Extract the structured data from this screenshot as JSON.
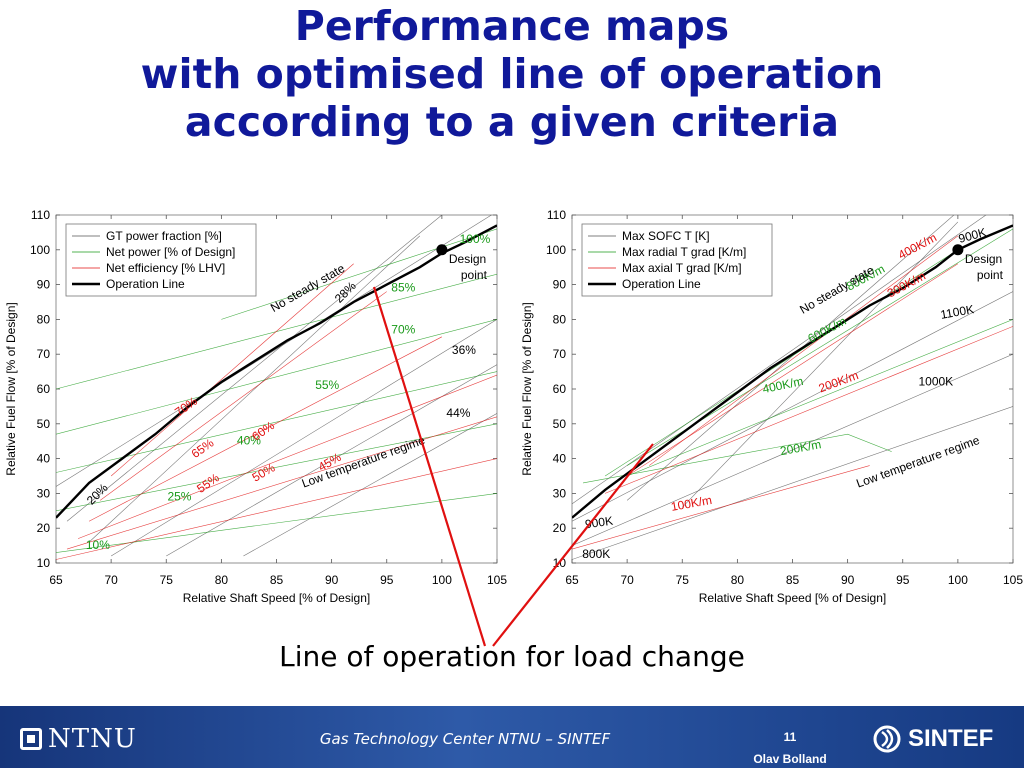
{
  "title": {
    "line1": "Performance maps",
    "line2": "with optimised line of operation",
    "line3": "according to a given criteria"
  },
  "caption": "Line of operation for load change",
  "footer": {
    "logo_left": "NTNU",
    "center_text": "Gas Technology Center NTNU – SINTEF",
    "page_number": "11",
    "author": "Olav Bolland",
    "logo_right": "SINTEF"
  },
  "colors": {
    "title": "#10199a",
    "series_black": "#000000",
    "series_green": "#1a9a1a",
    "series_red": "#e01010",
    "callout_line": "#e01010",
    "footer_bg": "#1f4690"
  },
  "chart_data": [
    {
      "type": "line",
      "xlabel": "Relative Shaft Speed [% of Design]",
      "ylabel": "Relative Fuel Flow [% of Design]",
      "xlim": [
        65,
        105
      ],
      "ylim": [
        10,
        110
      ],
      "xticks": [
        "65",
        "70",
        "75",
        "80",
        "85",
        "90",
        "95",
        "100",
        "105"
      ],
      "yticks": [
        "10",
        "20",
        "30",
        "40",
        "50",
        "60",
        "70",
        "80",
        "90",
        "100",
        "110"
      ],
      "legend_position": "top-left",
      "legend": [
        {
          "label": "GT power fraction [%]",
          "color": "#555555",
          "style": "thin"
        },
        {
          "label": "Net power [% of Design]",
          "color": "#1a9a1a",
          "style": "thin"
        },
        {
          "label": "Net efficiency [% LHV]",
          "color": "#e01010",
          "style": "thin"
        },
        {
          "label": "Operation Line",
          "color": "#000000",
          "style": "thick"
        }
      ],
      "operation_line": {
        "x": [
          65,
          68,
          71,
          74,
          77,
          80,
          83,
          86,
          89,
          92,
          95,
          98,
          100,
          102,
          105
        ],
        "y": [
          23,
          33,
          40,
          47,
          55,
          62,
          68,
          74,
          79,
          85,
          90,
          95,
          99,
          102,
          107
        ]
      },
      "design_point": {
        "x": 100,
        "y": 100,
        "label_line1": "Design",
        "label_line2": "point"
      },
      "region_labels": [
        "No steady state",
        "Low temperature regime"
      ],
      "contours": [
        {
          "group": "gt_power",
          "color": "#555555",
          "x": [
            65,
            105
          ],
          "y": [
            32,
            111
          ]
        },
        {
          "group": "gt_power",
          "color": "#555555",
          "x": [
            66,
            100
          ],
          "y": [
            22,
            110
          ]
        },
        {
          "group": "gt_power",
          "color": "#555555",
          "x": [
            68,
            98
          ],
          "y": [
            16,
            104
          ]
        },
        {
          "group": "gt_power",
          "color": "#555555",
          "x": [
            70,
            105
          ],
          "y": [
            12,
            80
          ]
        },
        {
          "group": "gt_power",
          "color": "#555555",
          "x": [
            75,
            105
          ],
          "y": [
            12,
            67
          ]
        },
        {
          "group": "gt_power",
          "color": "#555555",
          "x": [
            82,
            105
          ],
          "y": [
            12,
            53
          ]
        },
        {
          "group": "net_power",
          "color": "#1a9a1a",
          "x": [
            65,
            105
          ],
          "y": [
            13,
            30
          ]
        },
        {
          "group": "net_power",
          "color": "#1a9a1a",
          "x": [
            65,
            105
          ],
          "y": [
            25,
            50
          ]
        },
        {
          "group": "net_power",
          "color": "#1a9a1a",
          "x": [
            65,
            105
          ],
          "y": [
            36,
            65
          ]
        },
        {
          "group": "net_power",
          "color": "#1a9a1a",
          "x": [
            65,
            105
          ],
          "y": [
            47,
            80
          ]
        },
        {
          "group": "net_power",
          "color": "#1a9a1a",
          "x": [
            65,
            105
          ],
          "y": [
            60,
            93
          ]
        },
        {
          "group": "net_power",
          "color": "#1a9a1a",
          "x": [
            80,
            105
          ],
          "y": [
            80,
            106
          ]
        },
        {
          "group": "efficiency",
          "color": "#e01010",
          "x": [
            65,
            105
          ],
          "y": [
            11,
            40
          ]
        },
        {
          "group": "efficiency",
          "color": "#e01010",
          "x": [
            66,
            105
          ],
          "y": [
            14,
            52
          ]
        },
        {
          "group": "efficiency",
          "color": "#e01010",
          "x": [
            67,
            105
          ],
          "y": [
            17,
            64
          ]
        },
        {
          "group": "efficiency",
          "color": "#e01010",
          "x": [
            68,
            100
          ],
          "y": [
            22,
            75
          ]
        },
        {
          "group": "efficiency",
          "color": "#e01010",
          "x": [
            69,
            95
          ],
          "y": [
            28,
            88
          ]
        },
        {
          "group": "efficiency",
          "color": "#e01010",
          "x": [
            70,
            92
          ],
          "y": [
            35,
            96
          ]
        }
      ],
      "annotations": [
        {
          "text": "100%",
          "x": 103,
          "y": 102,
          "color": "#1a9a1a",
          "rotate": 0
        },
        {
          "text": "85%",
          "x": 96.5,
          "y": 88,
          "color": "#1a9a1a",
          "rotate": 0
        },
        {
          "text": "70%",
          "x": 96.5,
          "y": 76,
          "color": "#1a9a1a",
          "rotate": 0
        },
        {
          "text": "55%",
          "x": 89.6,
          "y": 60,
          "color": "#1a9a1a",
          "rotate": 0
        },
        {
          "text": "40%",
          "x": 82.5,
          "y": 44,
          "color": "#1a9a1a",
          "rotate": 0
        },
        {
          "text": "25%",
          "x": 76.2,
          "y": 28,
          "color": "#1a9a1a",
          "rotate": 0
        },
        {
          "text": "10%",
          "x": 68.8,
          "y": 14,
          "color": "#1a9a1a",
          "rotate": 0
        },
        {
          "text": "36%",
          "x": 102,
          "y": 70,
          "color": "#000000",
          "rotate": 0
        },
        {
          "text": "44%",
          "x": 101.5,
          "y": 52,
          "color": "#000000",
          "rotate": 0
        },
        {
          "text": "28%",
          "x": 91.5,
          "y": 87,
          "color": "#000000",
          "rotate": -45
        },
        {
          "text": "20%",
          "x": 69,
          "y": 29,
          "color": "#000000",
          "rotate": -45
        },
        {
          "text": "70%",
          "x": 77,
          "y": 54,
          "color": "#e01010",
          "rotate": -35
        },
        {
          "text": "65%",
          "x": 78.5,
          "y": 42,
          "color": "#e01010",
          "rotate": -35
        },
        {
          "text": "60%",
          "x": 84,
          "y": 47,
          "color": "#e01010",
          "rotate": -35
        },
        {
          "text": "55%",
          "x": 79,
          "y": 32,
          "color": "#e01010",
          "rotate": -35
        },
        {
          "text": "50%",
          "x": 84,
          "y": 35,
          "color": "#e01010",
          "rotate": -30
        },
        {
          "text": "45%",
          "x": 90,
          "y": 38,
          "color": "#e01010",
          "rotate": -30
        },
        {
          "text": "No steady state",
          "x": 88,
          "y": 88,
          "color": "#000000",
          "rotate": -30
        },
        {
          "text": "Low temperature regime",
          "x": 93,
          "y": 38,
          "color": "#000000",
          "rotate": -20
        }
      ]
    },
    {
      "type": "line",
      "xlabel": "Relative Shaft Speed [% of Design]",
      "ylabel": "Relative Fuel Flow [% of Design]",
      "xlim": [
        65,
        105
      ],
      "ylim": [
        10,
        110
      ],
      "xticks": [
        "65",
        "70",
        "75",
        "80",
        "85",
        "90",
        "95",
        "100",
        "105"
      ],
      "yticks": [
        "10",
        "20",
        "30",
        "40",
        "50",
        "60",
        "70",
        "80",
        "90",
        "100",
        "110"
      ],
      "legend_position": "top-left",
      "legend": [
        {
          "label": "Max SOFC T [K]",
          "color": "#555555",
          "style": "thin"
        },
        {
          "label": "Max radial T grad [K/m]",
          "color": "#1a9a1a",
          "style": "thin"
        },
        {
          "label": "Max axial T grad [K/m]",
          "color": "#e01010",
          "style": "thin"
        },
        {
          "label": "Operation Line",
          "color": "#000000",
          "style": "thick"
        }
      ],
      "operation_line": {
        "x": [
          65,
          68,
          71,
          74,
          77,
          80,
          83,
          86,
          89,
          92,
          95,
          98,
          100,
          102,
          105
        ],
        "y": [
          23,
          31,
          38,
          45,
          52,
          59,
          66,
          72,
          78,
          84,
          89,
          95,
          100,
          103,
          107
        ]
      },
      "design_point": {
        "x": 100,
        "y": 100,
        "label_line1": "Design",
        "label_line2": "point"
      },
      "region_labels": [
        "No steady state",
        "Low temperature regime"
      ],
      "contours": [
        {
          "group": "sofc_t",
          "color": "#555555",
          "x": [
            65,
            105
          ],
          "y": [
            11,
            55
          ]
        },
        {
          "group": "sofc_t",
          "color": "#555555",
          "x": [
            65,
            105
          ],
          "y": [
            15,
            70
          ]
        },
        {
          "group": "sofc_t",
          "color": "#555555",
          "x": [
            65,
            105
          ],
          "y": [
            22,
            88
          ]
        },
        {
          "group": "sofc_t",
          "color": "#555555",
          "x": [
            65,
            103
          ],
          "y": [
            27,
            111
          ]
        },
        {
          "group": "sofc_t",
          "color": "#555555",
          "x": [
            70,
            100
          ],
          "y": [
            28,
            111
          ]
        },
        {
          "group": "sofc_t",
          "color": "#555555",
          "x": [
            75,
            100
          ],
          "y": [
            26,
            108
          ]
        },
        {
          "group": "radial",
          "color": "#1a9a1a",
          "x": [
            70,
            105
          ],
          "y": [
            35,
            80
          ]
        },
        {
          "group": "radial",
          "color": "#1a9a1a",
          "x": [
            66,
            90,
            94
          ],
          "y": [
            33,
            47,
            42
          ]
        },
        {
          "group": "radial",
          "color": "#1a9a1a",
          "x": [
            68,
            100
          ],
          "y": [
            35,
            100
          ]
        },
        {
          "group": "radial",
          "color": "#1a9a1a",
          "x": [
            70,
            105
          ],
          "y": [
            38,
            106
          ]
        },
        {
          "group": "axial",
          "color": "#e01010",
          "x": [
            65,
            92
          ],
          "y": [
            14,
            38
          ]
        },
        {
          "group": "axial",
          "color": "#e01010",
          "x": [
            68,
            105
          ],
          "y": [
            30,
            78
          ]
        },
        {
          "group": "axial",
          "color": "#e01010",
          "x": [
            70,
            100
          ],
          "y": [
            35,
            96
          ]
        },
        {
          "group": "axial",
          "color": "#e01010",
          "x": [
            72,
            100
          ],
          "y": [
            38,
            104
          ]
        }
      ],
      "annotations": [
        {
          "text": "900K",
          "x": 101.4,
          "y": 103,
          "color": "#000000",
          "rotate": -15
        },
        {
          "text": "1100K",
          "x": 100,
          "y": 81,
          "color": "#000000",
          "rotate": -10
        },
        {
          "text": "1000K",
          "x": 98,
          "y": 61,
          "color": "#000000",
          "rotate": 0
        },
        {
          "text": "900K",
          "x": 67.5,
          "y": 20.5,
          "color": "#000000",
          "rotate": -8
        },
        {
          "text": "800K",
          "x": 67.2,
          "y": 11.5,
          "color": "#000000",
          "rotate": 0
        },
        {
          "text": "400K/m",
          "x": 96.5,
          "y": 100,
          "color": "#e01010",
          "rotate": -28
        },
        {
          "text": "300K/m",
          "x": 95.5,
          "y": 89,
          "color": "#e01010",
          "rotate": -28
        },
        {
          "text": "800K/m",
          "x": 91.8,
          "y": 91,
          "color": "#1a9a1a",
          "rotate": -28
        },
        {
          "text": "600K/m",
          "x": 88.3,
          "y": 76,
          "color": "#1a9a1a",
          "rotate": -28
        },
        {
          "text": "400K/m",
          "x": 84.2,
          "y": 60,
          "color": "#1a9a1a",
          "rotate": -12
        },
        {
          "text": "200K/m",
          "x": 89.3,
          "y": 61,
          "color": "#e01010",
          "rotate": -20
        },
        {
          "text": "200K/m",
          "x": 85.8,
          "y": 42,
          "color": "#1a9a1a",
          "rotate": -10
        },
        {
          "text": "100K/m",
          "x": 75.9,
          "y": 26,
          "color": "#e01010",
          "rotate": -10
        },
        {
          "text": "No steady state",
          "x": 89.2,
          "y": 87.5,
          "color": "#000000",
          "rotate": -30
        },
        {
          "text": "Low temperature regime",
          "x": 96.5,
          "y": 38,
          "color": "#000000",
          "rotate": -20
        }
      ]
    }
  ]
}
